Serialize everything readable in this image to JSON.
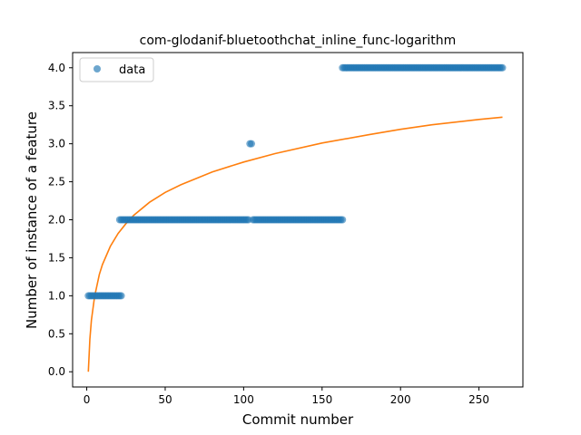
{
  "chart_data": {
    "type": "scatter",
    "title": "com-glodanif-bluetoothchat_inline_func-logarithm",
    "xlabel": "Commit number",
    "ylabel": "Number of instance of a feature",
    "xlim": [
      -9,
      278
    ],
    "ylim": [
      -0.2,
      4.2
    ],
    "x_ticks": [
      0,
      50,
      100,
      150,
      200,
      250
    ],
    "x_tick_labels": [
      "0",
      "50",
      "100",
      "150",
      "200",
      "250"
    ],
    "y_ticks": [
      0.0,
      0.5,
      1.0,
      1.5,
      2.0,
      2.5,
      3.0,
      3.5,
      4.0
    ],
    "y_tick_labels": [
      "0.0",
      "0.5",
      "1.0",
      "1.5",
      "2.0",
      "2.5",
      "3.0",
      "3.5",
      "4.0"
    ],
    "grid": false,
    "legend": {
      "position": "top-left",
      "entries": [
        "data"
      ]
    },
    "series": [
      {
        "name": "data",
        "kind": "scatter",
        "color": "#1f77b4",
        "point_groups": [
          {
            "x_from": 1,
            "x_to": 22,
            "y": 1
          },
          {
            "x_from": 21,
            "x_to": 103,
            "y": 2
          },
          {
            "x_from": 104,
            "x_to": 105,
            "y": 3
          },
          {
            "x_from": 106,
            "x_to": 163,
            "y": 2
          },
          {
            "x_from": 163,
            "x_to": 265,
            "y": 4
          }
        ]
      },
      {
        "kind": "line",
        "color": "#ff7f0e",
        "fit": "logarithmic",
        "x": [
          1,
          2,
          3,
          5,
          8,
          10,
          15,
          20,
          25,
          30,
          40,
          50,
          60,
          80,
          100,
          120,
          150,
          180,
          200,
          220,
          250,
          265
        ],
        "y": [
          0.0,
          0.43,
          0.68,
          0.99,
          1.28,
          1.41,
          1.65,
          1.82,
          1.95,
          2.06,
          2.23,
          2.36,
          2.46,
          2.63,
          2.76,
          2.87,
          3.01,
          3.12,
          3.19,
          3.25,
          3.32,
          3.35
        ]
      }
    ]
  }
}
